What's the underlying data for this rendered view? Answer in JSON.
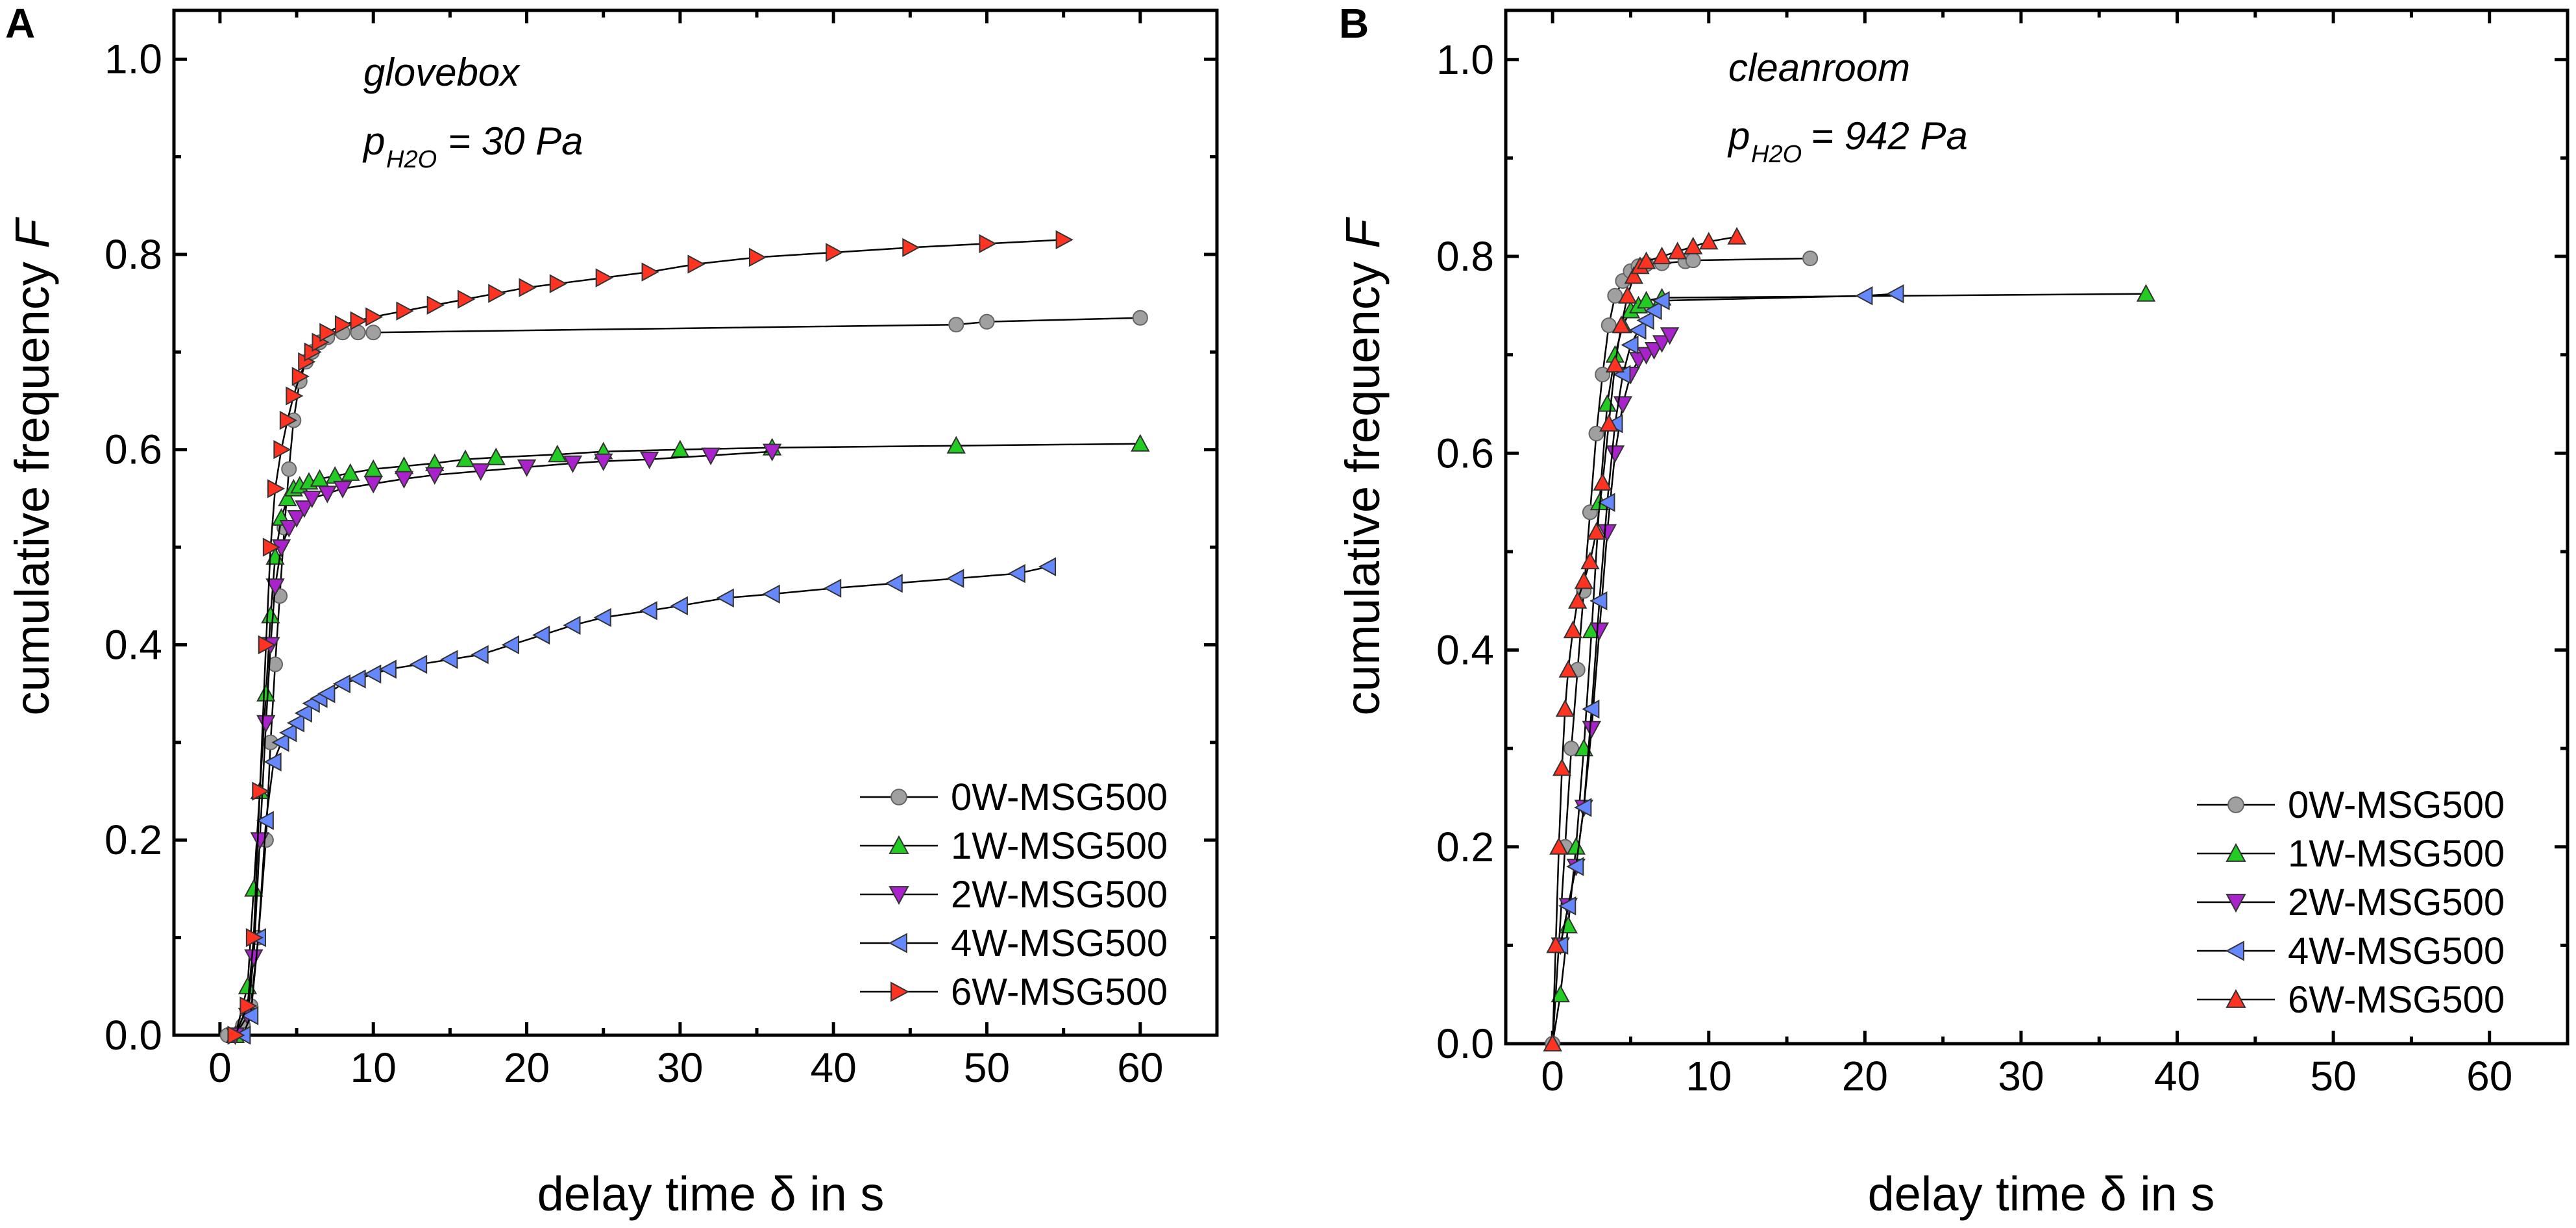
{
  "chart_data": [
    {
      "panel": "A",
      "type": "line",
      "title": "",
      "annotation": {
        "env": "glovebox",
        "pressure_symbol": "p",
        "pressure_sub": "H2O",
        "pressure_value": "= 30 Pa"
      },
      "xlabel": "delay time δ in s",
      "ylabel": "cumulative frequency F",
      "xlim": [
        -3,
        65
      ],
      "ylim": [
        0,
        1.05
      ],
      "xticks": [
        0,
        10,
        20,
        30,
        40,
        50,
        60
      ],
      "xtick_labels": [
        "0",
        "10",
        "20",
        "30",
        "40",
        "50",
        "60"
      ],
      "yticks": [
        0.0,
        0.2,
        0.4,
        0.6,
        0.8,
        1.0
      ],
      "ytick_labels": [
        "0.0",
        "0.2",
        "0.4",
        "0.6",
        "0.8",
        "1.0"
      ],
      "legend_position": "bottom-right",
      "series": [
        {
          "name": "0W-MSG500",
          "color": "#a0a0a0",
          "marker": "circle",
          "x": [
            0.5,
            1.5,
            2.0,
            2.5,
            3.0,
            3.3,
            3.6,
            3.9,
            4.2,
            4.5,
            4.8,
            5.2,
            5.6,
            6.0,
            6.5,
            7.0,
            8.0,
            9.0,
            10.0,
            48.0,
            50.0,
            60.0
          ],
          "y": [
            0.0,
            0.01,
            0.03,
            0.1,
            0.2,
            0.3,
            0.38,
            0.45,
            0.52,
            0.58,
            0.63,
            0.67,
            0.69,
            0.7,
            0.71,
            0.715,
            0.72,
            0.72,
            0.72,
            0.728,
            0.731,
            0.735
          ]
        },
        {
          "name": "1W-MSG500",
          "color": "#22cc22",
          "marker": "triangle-up",
          "x": [
            1.0,
            1.8,
            2.2,
            2.6,
            3.0,
            3.3,
            3.6,
            4.0,
            4.4,
            4.8,
            5.2,
            5.8,
            6.5,
            7.5,
            8.5,
            10,
            12,
            14,
            16,
            18,
            22,
            25,
            30,
            36,
            48,
            60
          ],
          "y": [
            0.0,
            0.05,
            0.15,
            0.25,
            0.35,
            0.43,
            0.49,
            0.53,
            0.55,
            0.56,
            0.563,
            0.567,
            0.57,
            0.573,
            0.576,
            0.58,
            0.583,
            0.586,
            0.59,
            0.592,
            0.595,
            0.598,
            0.6,
            0.602,
            0.604,
            0.606
          ]
        },
        {
          "name": "2W-MSG500",
          "color": "#aa22cc",
          "marker": "triangle-down",
          "x": [
            1.0,
            1.8,
            2.2,
            2.6,
            3.0,
            3.3,
            3.6,
            4.0,
            4.5,
            5.0,
            5.5,
            6.0,
            7.0,
            8.0,
            10,
            12,
            14,
            17,
            20,
            23,
            25,
            28,
            32,
            36
          ],
          "y": [
            0.0,
            0.02,
            0.08,
            0.2,
            0.32,
            0.4,
            0.46,
            0.5,
            0.52,
            0.53,
            0.54,
            0.55,
            0.555,
            0.56,
            0.565,
            0.57,
            0.574,
            0.578,
            0.582,
            0.586,
            0.588,
            0.59,
            0.594,
            0.598
          ]
        },
        {
          "name": "4W-MSG500",
          "color": "#6688ff",
          "marker": "triangle-left",
          "x": [
            1.5,
            2.0,
            2.5,
            3.0,
            3.5,
            4.0,
            4.5,
            5.0,
            5.5,
            6.0,
            6.5,
            7.0,
            8.0,
            9.0,
            10,
            11,
            13,
            15,
            17,
            19,
            21,
            23,
            25,
            28,
            30,
            33,
            36,
            40,
            44,
            48,
            52,
            54
          ],
          "y": [
            0.0,
            0.02,
            0.1,
            0.22,
            0.28,
            0.3,
            0.31,
            0.32,
            0.33,
            0.34,
            0.345,
            0.35,
            0.36,
            0.365,
            0.37,
            0.375,
            0.38,
            0.385,
            0.39,
            0.4,
            0.41,
            0.42,
            0.428,
            0.435,
            0.44,
            0.448,
            0.452,
            0.458,
            0.463,
            0.468,
            0.473,
            0.48
          ]
        },
        {
          "name": "6W-MSG500",
          "color": "#ff3322",
          "marker": "triangle-right",
          "x": [
            1.0,
            1.8,
            2.2,
            2.6,
            3.0,
            3.3,
            3.6,
            4.0,
            4.4,
            4.8,
            5.2,
            5.6,
            6.0,
            6.5,
            7.0,
            8.0,
            9.0,
            10,
            12,
            14,
            16,
            18,
            20,
            22,
            25,
            28,
            31,
            35,
            40,
            45,
            50,
            55
          ],
          "y": [
            0.0,
            0.03,
            0.1,
            0.25,
            0.4,
            0.5,
            0.56,
            0.6,
            0.63,
            0.655,
            0.675,
            0.69,
            0.7,
            0.71,
            0.72,
            0.728,
            0.732,
            0.736,
            0.742,
            0.748,
            0.754,
            0.76,
            0.766,
            0.77,
            0.776,
            0.782,
            0.79,
            0.797,
            0.802,
            0.807,
            0.811,
            0.815
          ]
        }
      ]
    },
    {
      "panel": "B",
      "type": "line",
      "title": "",
      "annotation": {
        "env": "cleanroom",
        "pressure_symbol": "p",
        "pressure_sub": "H2O",
        "pressure_value": "= 942 Pa"
      },
      "xlabel": "delay time δ in s",
      "ylabel": "cumulative frequency F",
      "xlim": [
        -3,
        65
      ],
      "ylim": [
        0,
        1.05
      ],
      "xticks": [
        0,
        10,
        20,
        30,
        40,
        50,
        60
      ],
      "xtick_labels": [
        "0",
        "10",
        "20",
        "30",
        "40",
        "50",
        "60"
      ],
      "yticks": [
        0.0,
        0.2,
        0.4,
        0.6,
        0.8,
        1.0
      ],
      "ytick_labels": [
        "0.0",
        "0.2",
        "0.4",
        "0.6",
        "0.8",
        "1.0"
      ],
      "legend_position": "bottom-right",
      "series": [
        {
          "name": "0W-MSG500",
          "color": "#a0a0a0",
          "marker": "circle",
          "x": [
            0.0,
            0.4,
            0.8,
            1.2,
            1.6,
            2.0,
            2.4,
            2.8,
            3.2,
            3.6,
            4.0,
            4.5,
            5.0,
            5.5,
            6.0,
            7.0,
            8.5,
            9.0,
            16.5
          ],
          "y": [
            0.0,
            0.1,
            0.2,
            0.3,
            0.38,
            0.46,
            0.54,
            0.62,
            0.68,
            0.73,
            0.76,
            0.775,
            0.785,
            0.79,
            0.792,
            0.793,
            0.795,
            0.796,
            0.798
          ]
        },
        {
          "name": "1W-MSG500",
          "color": "#22cc22",
          "marker": "triangle-up",
          "x": [
            0.0,
            0.5,
            1.0,
            1.5,
            2.0,
            2.5,
            3.0,
            3.5,
            4.0,
            4.5,
            5.0,
            5.5,
            6.0,
            7.0,
            38.0
          ],
          "y": [
            0.0,
            0.05,
            0.12,
            0.2,
            0.3,
            0.42,
            0.55,
            0.65,
            0.7,
            0.73,
            0.745,
            0.75,
            0.755,
            0.758,
            0.762
          ]
        },
        {
          "name": "2W-MSG500",
          "color": "#aa22cc",
          "marker": "triangle-down",
          "x": [
            0.5,
            1.0,
            1.5,
            2.0,
            2.5,
            3.0,
            3.5,
            4.0,
            4.5,
            5.0,
            5.5,
            6.0,
            6.5,
            7.0,
            7.5
          ],
          "y": [
            0.1,
            0.14,
            0.18,
            0.24,
            0.32,
            0.42,
            0.52,
            0.6,
            0.65,
            0.68,
            0.695,
            0.7,
            0.705,
            0.712,
            0.72
          ]
        },
        {
          "name": "4W-MSG500",
          "color": "#6688ff",
          "marker": "triangle-left",
          "x": [
            0.5,
            1.0,
            1.5,
            2.0,
            2.5,
            3.0,
            3.5,
            4.0,
            4.5,
            5.0,
            5.5,
            6.0,
            6.5,
            7.0,
            20.0,
            22.0
          ],
          "y": [
            0.1,
            0.14,
            0.18,
            0.24,
            0.34,
            0.45,
            0.55,
            0.63,
            0.68,
            0.71,
            0.725,
            0.735,
            0.745,
            0.755,
            0.76,
            0.762
          ]
        },
        {
          "name": "6W-MSG500",
          "color": "#ff3322",
          "marker": "triangle-up",
          "x": [
            0.0,
            0.2,
            0.4,
            0.6,
            0.8,
            1.0,
            1.3,
            1.6,
            2.0,
            2.4,
            2.8,
            3.2,
            3.6,
            4.0,
            4.4,
            4.8,
            5.2,
            5.6,
            6.0,
            7.0,
            8.0,
            9.0,
            10.0,
            11.8
          ],
          "y": [
            0.0,
            0.1,
            0.2,
            0.28,
            0.34,
            0.38,
            0.42,
            0.45,
            0.47,
            0.49,
            0.52,
            0.57,
            0.63,
            0.69,
            0.73,
            0.76,
            0.78,
            0.79,
            0.795,
            0.8,
            0.805,
            0.81,
            0.815,
            0.82
          ]
        }
      ]
    }
  ]
}
